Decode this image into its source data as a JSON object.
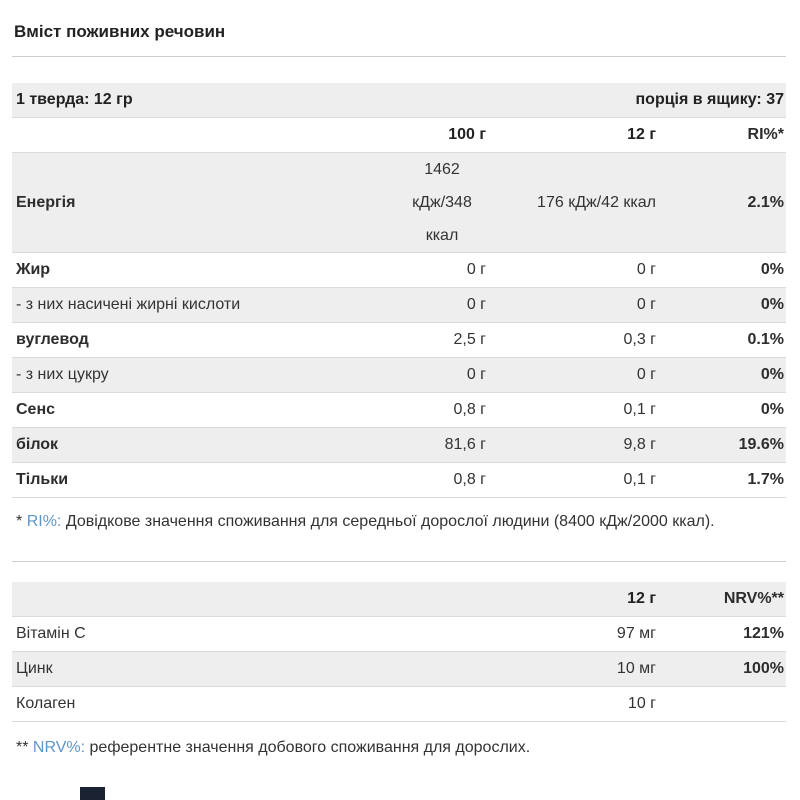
{
  "colors": {
    "accent_term_blue": "#5f96c9",
    "row_shade_gray": "#eeeeee",
    "border_gray": "#dadada"
  },
  "title": "Вміст поживних речовин",
  "table1": {
    "serving_size": "1 тверда: 12 гр",
    "servings_per_box": "порція в ящику: 37",
    "col_100g": "100 г",
    "col_12g": "12 г",
    "col_ri": "RI%*",
    "rows": [
      {
        "label": "Енергія",
        "v100": "1462 кДж/348 ккал",
        "v12": "176 кДж/42 ккал",
        "ri": "2.1%"
      },
      {
        "label": "Жир",
        "v100": "0 г",
        "v12": "0 г",
        "ri": "0%"
      },
      {
        "label": "- з них насичені жирні кислоти",
        "v100": "0 г",
        "v12": "0 г",
        "ri": "0%"
      },
      {
        "label": "вуглевод",
        "v100": "2,5 г",
        "v12": "0,3 г",
        "ri": "0.1%"
      },
      {
        "label": "- з них цукру",
        "v100": "0 г",
        "v12": "0 г",
        "ri": "0%"
      },
      {
        "label": "Сенс",
        "v100": "0,8 г",
        "v12": "0,1 г",
        "ri": "0%"
      },
      {
        "label": "білок",
        "v100": "81,6 г",
        "v12": "9,8 г",
        "ri": "19.6%"
      },
      {
        "label": "Тільки",
        "v100": "0,8 г",
        "v12": "0,1 г",
        "ri": "1.7%"
      }
    ],
    "footnote": {
      "marker": "*",
      "term": "RI%:",
      "text": "Довідкове значення споживання для середньої дорослої людини (8400 кДж/2000 ккал)."
    }
  },
  "table2": {
    "col_12g": "12 г",
    "col_nrv": "NRV%**",
    "rows": [
      {
        "label": "Вітамін C",
        "v12": "97 мг",
        "nrv": "121%"
      },
      {
        "label": "Цинк",
        "v12": "10 мг",
        "nrv": "100%"
      },
      {
        "label": "Колаген",
        "v12": "10 г",
        "nrv": ""
      }
    ],
    "footnote": {
      "marker": "**",
      "term": "NRV%:",
      "text": "референтне значення добового споживання для дорослих."
    }
  }
}
